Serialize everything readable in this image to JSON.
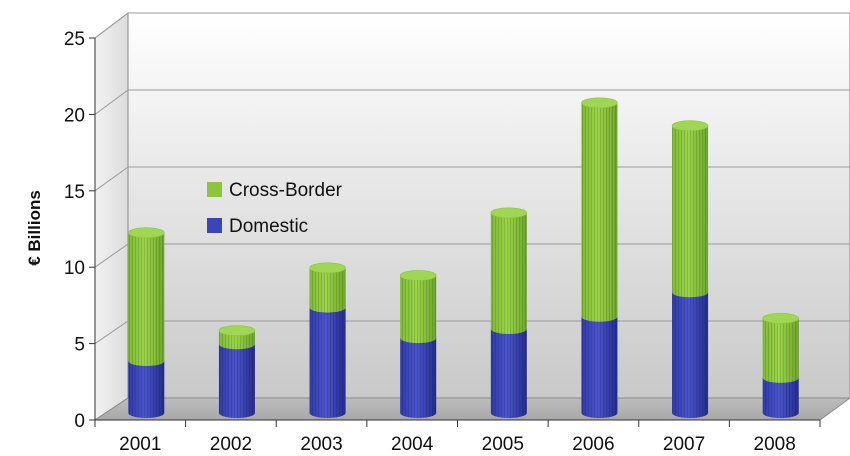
{
  "chart_data": {
    "type": "bar",
    "stacked": true,
    "style": "3d-cylinder",
    "categories": [
      "2001",
      "2002",
      "2003",
      "2004",
      "2005",
      "2006",
      "2007",
      "2008"
    ],
    "series": [
      {
        "name": "Domestic",
        "values": [
          3.4,
          4.5,
          6.9,
          4.9,
          5.5,
          6.3,
          7.9,
          2.3
        ],
        "color": "#3a45b8"
      },
      {
        "name": "Cross-Border",
        "values": [
          8.4,
          0.9,
          2.6,
          4.1,
          7.6,
          14.0,
          10.9,
          3.9
        ],
        "color": "#8cc63f"
      }
    ],
    "title": "",
    "xlabel": "",
    "ylabel": "€ Billions",
    "ylim": [
      0,
      25
    ],
    "yticks": [
      "0",
      "5",
      "10",
      "15",
      "20",
      "25"
    ],
    "grid": true,
    "legend": {
      "placement": "top-left inside plot",
      "order": [
        "Cross-Border",
        "Domestic"
      ]
    }
  }
}
